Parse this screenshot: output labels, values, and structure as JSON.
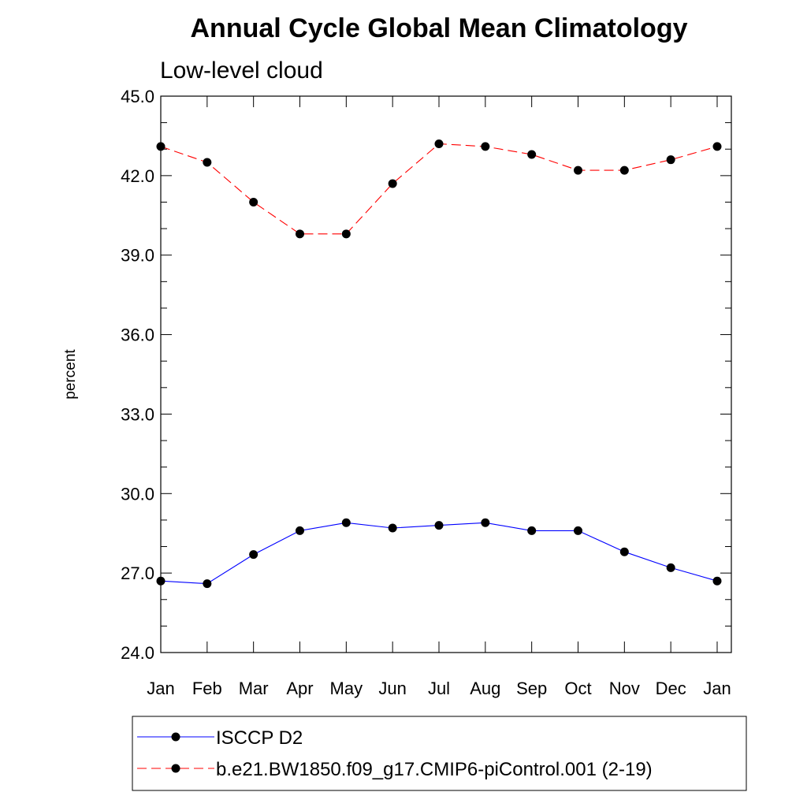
{
  "chart_data": {
    "type": "line",
    "title": "Annual Cycle Global Mean Climatology",
    "subtitle": "Low-level cloud",
    "xlabel": "",
    "ylabel": "percent",
    "categories": [
      "Jan",
      "Feb",
      "Mar",
      "Apr",
      "May",
      "Jun",
      "Jul",
      "Aug",
      "Sep",
      "Oct",
      "Nov",
      "Dec",
      "Jan"
    ],
    "ylim": [
      24.0,
      45.0
    ],
    "yticks": [
      "24.0",
      "27.0",
      "30.0",
      "33.0",
      "36.0",
      "39.0",
      "42.0",
      "45.0"
    ],
    "legend_position": "bottom",
    "grid": false,
    "series": [
      {
        "name": "ISCCP D2",
        "color": "#0000ff",
        "line_style": "solid",
        "marker": "filled-circle",
        "values": [
          26.7,
          26.6,
          27.7,
          28.6,
          28.9,
          28.7,
          28.8,
          28.9,
          28.6,
          28.6,
          27.8,
          27.2,
          26.7
        ]
      },
      {
        "name": "b.e21.BW1850.f09_g17.CMIP6-piControl.001 (2-19)",
        "color": "#ff0000",
        "line_style": "dashed",
        "marker": "filled-circle",
        "values": [
          43.1,
          42.5,
          41.0,
          39.8,
          39.8,
          41.7,
          43.2,
          43.1,
          42.8,
          42.2,
          42.2,
          42.6,
          43.1
        ]
      }
    ]
  }
}
